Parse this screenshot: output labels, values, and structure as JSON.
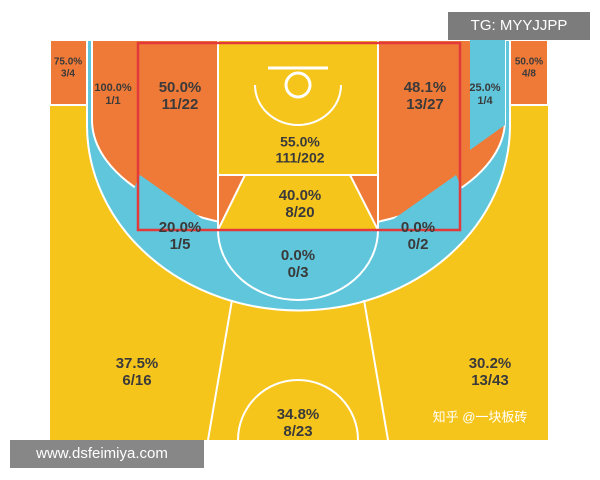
{
  "watermarks": {
    "top": "TG: MYYJJPP",
    "bottom": "www.dsfeimiya.com",
    "credit": "知乎 @一块板砖"
  },
  "zones": [
    {
      "pct": "75.0%",
      "ratio": "3/4"
    },
    {
      "pct": "100.0%",
      "ratio": "1/1"
    },
    {
      "pct": "50.0%",
      "ratio": "11/22"
    },
    {
      "pct": "48.1%",
      "ratio": "13/27"
    },
    {
      "pct": "25.0%",
      "ratio": "1/4"
    },
    {
      "pct": "50.0%",
      "ratio": "4/8"
    },
    {
      "pct": "55.0%",
      "ratio": "111/202"
    },
    {
      "pct": "40.0%",
      "ratio": "8/20"
    },
    {
      "pct": "20.0%",
      "ratio": "1/5"
    },
    {
      "pct": "0.0%",
      "ratio": "0/2"
    },
    {
      "pct": "0.0%",
      "ratio": "0/3"
    },
    {
      "pct": "37.5%",
      "ratio": "6/16"
    },
    {
      "pct": "30.2%",
      "ratio": "13/43"
    },
    {
      "pct": "34.8%",
      "ratio": "8/23"
    }
  ]
}
